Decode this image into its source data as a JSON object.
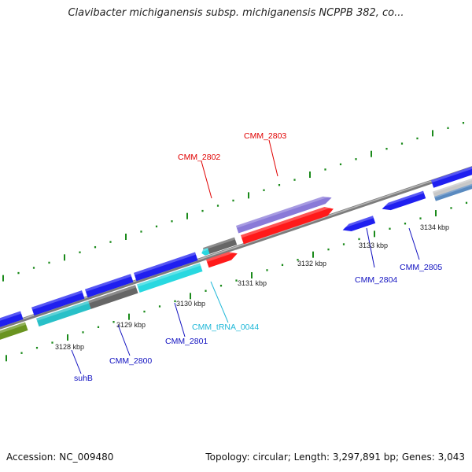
{
  "title": "Clavibacter michiganensis subsp. michiganensis NCPPB 382, co...",
  "footer": {
    "accession": "Accession: NC_009480",
    "summary": "Topology: circular; Length: 3,297,891 bp; Genes: 3,043"
  },
  "colors": {
    "backbone": "#8a8a8a",
    "tick": "#1a8a1a",
    "label_red": "#e00000",
    "label_blue": "#1010c0",
    "label_cyan": "#20b8d8",
    "gene_blue": "#1f1ff0",
    "gene_red": "#ff1a1a",
    "gene_gray": "#666666",
    "gene_lavender": "#8a7ad8",
    "gene_cyan": "#28d8e0",
    "gene_teal": "#28c0c8",
    "gene_olive": "#6a9420",
    "gene_steel": "#5a8ac0",
    "gene_silver": "#c8c8c8"
  },
  "scale_labels": [
    "3128 kbp",
    "3129 kbp",
    "3130 kbp",
    "3131 kbp",
    "3132 kbp",
    "3133 kbp",
    "3134 kbp"
  ],
  "gene_labels": [
    "CMM_2803",
    "CMM_2802",
    "CMM_2804",
    "CMM_2805",
    "CMM_tRNA_0044",
    "CMM_2801",
    "CMM_2800",
    "suhB"
  ]
}
